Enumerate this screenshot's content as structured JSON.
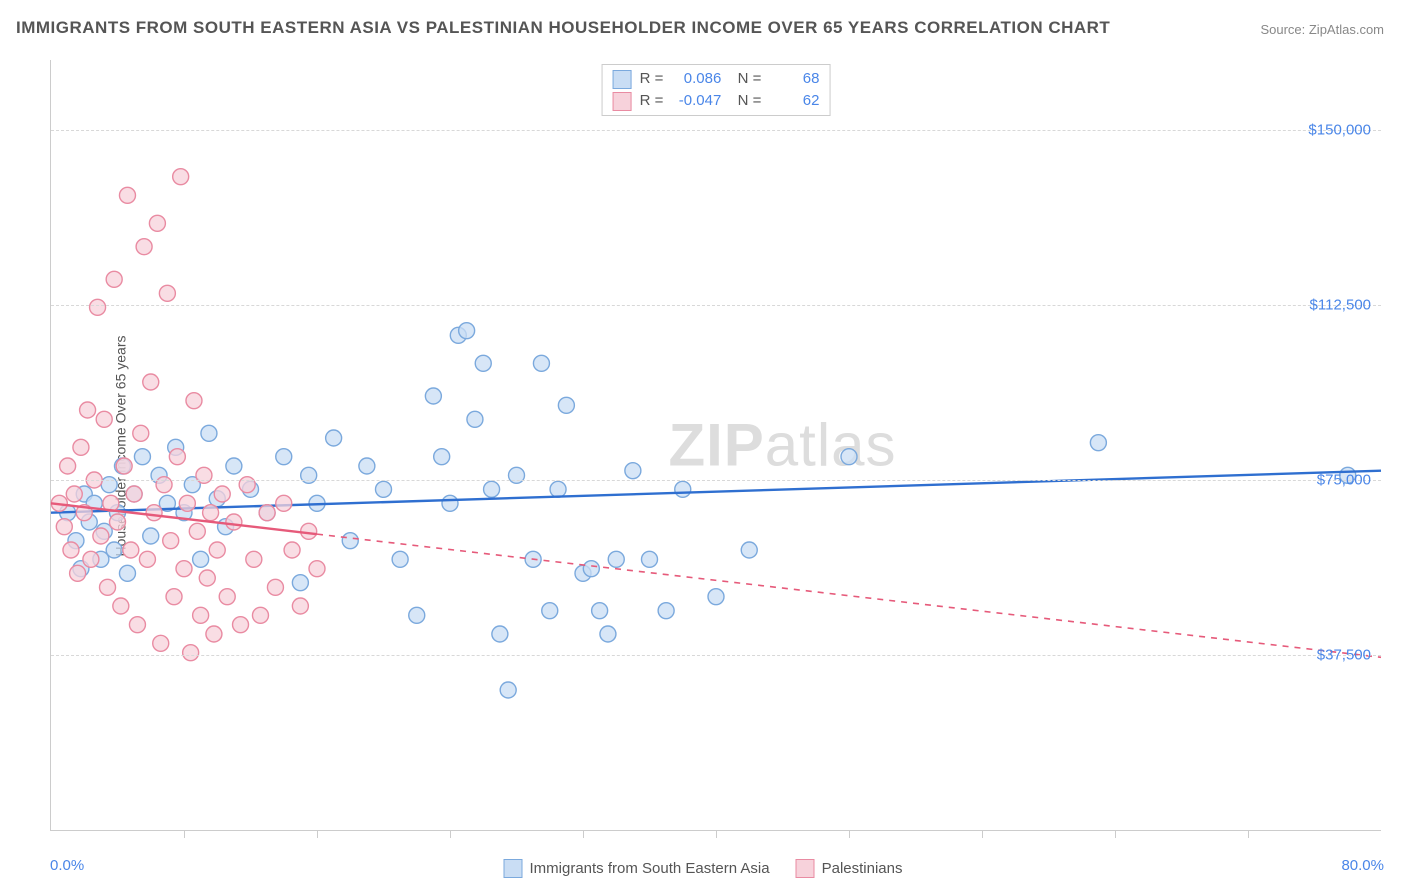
{
  "title": "IMMIGRANTS FROM SOUTH EASTERN ASIA VS PALESTINIAN HOUSEHOLDER INCOME OVER 65 YEARS CORRELATION CHART",
  "source": "Source: ZipAtlas.com",
  "ylabel": "Householder Income Over 65 years",
  "watermark_bold": "ZIP",
  "watermark_rest": "atlas",
  "chart": {
    "type": "scatter-with-regression",
    "xlim": [
      0,
      80
    ],
    "ylim": [
      0,
      165000
    ],
    "x_tick_min_label": "0.0%",
    "x_tick_max_label": "80.0%",
    "x_minor_ticks": [
      8,
      16,
      24,
      32,
      40,
      48,
      56,
      64,
      72
    ],
    "y_ticks": [
      {
        "v": 37500,
        "label": "$37,500"
      },
      {
        "v": 75000,
        "label": "$75,000"
      },
      {
        "v": 112500,
        "label": "$112,500"
      },
      {
        "v": 150000,
        "label": "$150,000"
      }
    ],
    "grid_color": "#d8d8d8",
    "background": "#ffffff",
    "series": [
      {
        "id": "seasia",
        "label": "Immigrants from South Eastern Asia",
        "marker_fill": "#c9ddf4",
        "marker_stroke": "#7ba9dd",
        "line_color": "#2f6fd0",
        "marker_radius": 8,
        "stats": {
          "R": "0.086",
          "N": "68"
        },
        "regression": {
          "x1": 0,
          "y1": 68000,
          "x2": 80,
          "y2": 77000,
          "solid_until_x": 80
        },
        "points": [
          [
            1.0,
            68000
          ],
          [
            1.5,
            62000
          ],
          [
            1.8,
            56000
          ],
          [
            2.0,
            72000
          ],
          [
            2.3,
            66000
          ],
          [
            2.6,
            70000
          ],
          [
            3.0,
            58000
          ],
          [
            3.2,
            64000
          ],
          [
            3.5,
            74000
          ],
          [
            3.8,
            60000
          ],
          [
            4.0,
            68000
          ],
          [
            4.3,
            78000
          ],
          [
            4.6,
            55000
          ],
          [
            5.0,
            72000
          ],
          [
            5.5,
            80000
          ],
          [
            6.0,
            63000
          ],
          [
            6.5,
            76000
          ],
          [
            7.0,
            70000
          ],
          [
            7.5,
            82000
          ],
          [
            8.0,
            68000
          ],
          [
            8.5,
            74000
          ],
          [
            9.0,
            58000
          ],
          [
            9.5,
            85000
          ],
          [
            10.0,
            71000
          ],
          [
            10.5,
            65000
          ],
          [
            11.0,
            78000
          ],
          [
            12.0,
            73000
          ],
          [
            13.0,
            68000
          ],
          [
            14.0,
            80000
          ],
          [
            15.0,
            53000
          ],
          [
            15.5,
            76000
          ],
          [
            16.0,
            70000
          ],
          [
            17.0,
            84000
          ],
          [
            18.0,
            62000
          ],
          [
            19.0,
            78000
          ],
          [
            20.0,
            73000
          ],
          [
            21.0,
            58000
          ],
          [
            22.0,
            46000
          ],
          [
            23.0,
            93000
          ],
          [
            23.5,
            80000
          ],
          [
            24.0,
            70000
          ],
          [
            24.5,
            106000
          ],
          [
            25.0,
            107000
          ],
          [
            25.5,
            88000
          ],
          [
            26.0,
            100000
          ],
          [
            26.5,
            73000
          ],
          [
            27.0,
            42000
          ],
          [
            27.5,
            30000
          ],
          [
            28.0,
            76000
          ],
          [
            29.0,
            58000
          ],
          [
            29.5,
            100000
          ],
          [
            30.0,
            47000
          ],
          [
            30.5,
            73000
          ],
          [
            31.0,
            91000
          ],
          [
            32.0,
            55000
          ],
          [
            32.5,
            56000
          ],
          [
            33.0,
            47000
          ],
          [
            33.5,
            42000
          ],
          [
            34.0,
            58000
          ],
          [
            35.0,
            77000
          ],
          [
            36.0,
            58000
          ],
          [
            37.0,
            47000
          ],
          [
            38.0,
            73000
          ],
          [
            40.0,
            50000
          ],
          [
            42.0,
            60000
          ],
          [
            48.0,
            80000
          ],
          [
            63.0,
            83000
          ],
          [
            78.0,
            76000
          ]
        ]
      },
      {
        "id": "palestinian",
        "label": "Palestinians",
        "marker_fill": "#f7d2db",
        "marker_stroke": "#e98ba2",
        "line_color": "#e65a7a",
        "marker_radius": 8,
        "stats": {
          "R": "-0.047",
          "N": "62"
        },
        "regression": {
          "x1": 0,
          "y1": 70000,
          "x2": 80,
          "y2": 37000,
          "solid_until_x": 16
        },
        "points": [
          [
            0.5,
            70000
          ],
          [
            0.8,
            65000
          ],
          [
            1.0,
            78000
          ],
          [
            1.2,
            60000
          ],
          [
            1.4,
            72000
          ],
          [
            1.6,
            55000
          ],
          [
            1.8,
            82000
          ],
          [
            2.0,
            68000
          ],
          [
            2.2,
            90000
          ],
          [
            2.4,
            58000
          ],
          [
            2.6,
            75000
          ],
          [
            2.8,
            112000
          ],
          [
            3.0,
            63000
          ],
          [
            3.2,
            88000
          ],
          [
            3.4,
            52000
          ],
          [
            3.6,
            70000
          ],
          [
            3.8,
            118000
          ],
          [
            4.0,
            66000
          ],
          [
            4.2,
            48000
          ],
          [
            4.4,
            78000
          ],
          [
            4.6,
            136000
          ],
          [
            4.8,
            60000
          ],
          [
            5.0,
            72000
          ],
          [
            5.2,
            44000
          ],
          [
            5.4,
            85000
          ],
          [
            5.6,
            125000
          ],
          [
            5.8,
            58000
          ],
          [
            6.0,
            96000
          ],
          [
            6.2,
            68000
          ],
          [
            6.4,
            130000
          ],
          [
            6.6,
            40000
          ],
          [
            6.8,
            74000
          ],
          [
            7.0,
            115000
          ],
          [
            7.2,
            62000
          ],
          [
            7.4,
            50000
          ],
          [
            7.6,
            80000
          ],
          [
            7.8,
            140000
          ],
          [
            8.0,
            56000
          ],
          [
            8.2,
            70000
          ],
          [
            8.4,
            38000
          ],
          [
            8.6,
            92000
          ],
          [
            8.8,
            64000
          ],
          [
            9.0,
            46000
          ],
          [
            9.2,
            76000
          ],
          [
            9.4,
            54000
          ],
          [
            9.6,
            68000
          ],
          [
            9.8,
            42000
          ],
          [
            10.0,
            60000
          ],
          [
            10.3,
            72000
          ],
          [
            10.6,
            50000
          ],
          [
            11.0,
            66000
          ],
          [
            11.4,
            44000
          ],
          [
            11.8,
            74000
          ],
          [
            12.2,
            58000
          ],
          [
            12.6,
            46000
          ],
          [
            13.0,
            68000
          ],
          [
            13.5,
            52000
          ],
          [
            14.0,
            70000
          ],
          [
            14.5,
            60000
          ],
          [
            15.0,
            48000
          ],
          [
            15.5,
            64000
          ],
          [
            16.0,
            56000
          ]
        ]
      }
    ]
  }
}
